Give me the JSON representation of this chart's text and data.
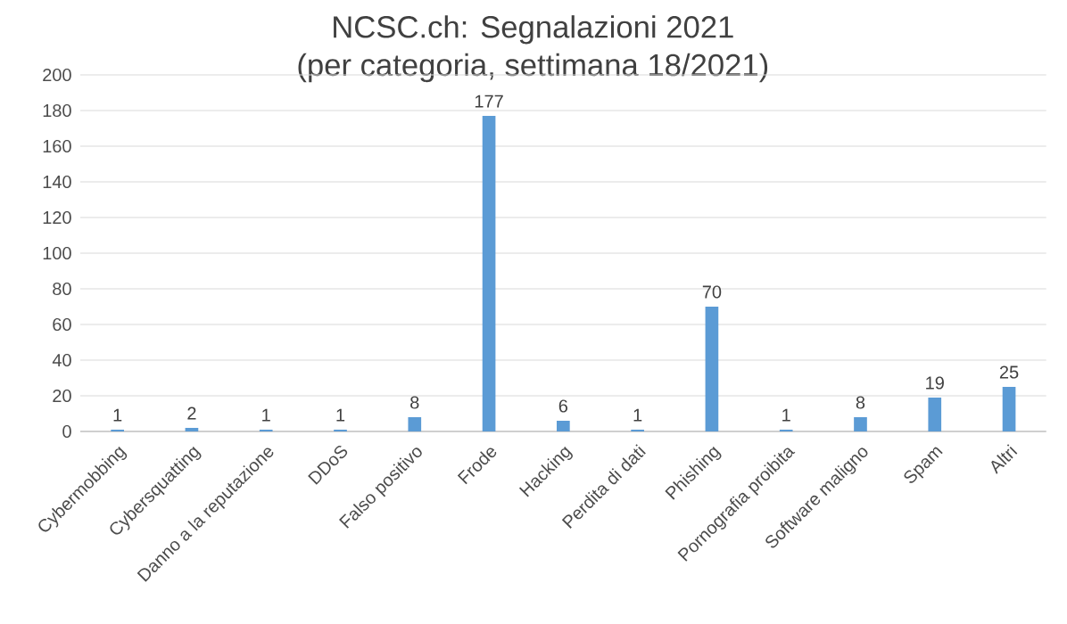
{
  "chart_data": {
    "type": "bar",
    "title": "NCSC.ch: Segnalazioni 2021",
    "subtitle": "(per categoria, settimana 18/2021)",
    "categories": [
      "Cybermobbing",
      "Cybersquatting",
      "Danno a la reputazione",
      "DDoS",
      "Falso positivo",
      "Frode",
      "Hacking",
      "Perdita di dati",
      "Phishing",
      "Pornografia proibita",
      "Software maligno",
      "Spam",
      "Altri"
    ],
    "values": [
      1,
      2,
      1,
      1,
      8,
      177,
      6,
      1,
      70,
      1,
      8,
      19,
      25
    ],
    "color": "#5b9bd5",
    "ylim": [
      0,
      200
    ],
    "yticks": [
      0,
      20,
      40,
      60,
      80,
      100,
      120,
      140,
      160,
      180,
      200
    ],
    "grid": "y",
    "data_labels": true
  }
}
